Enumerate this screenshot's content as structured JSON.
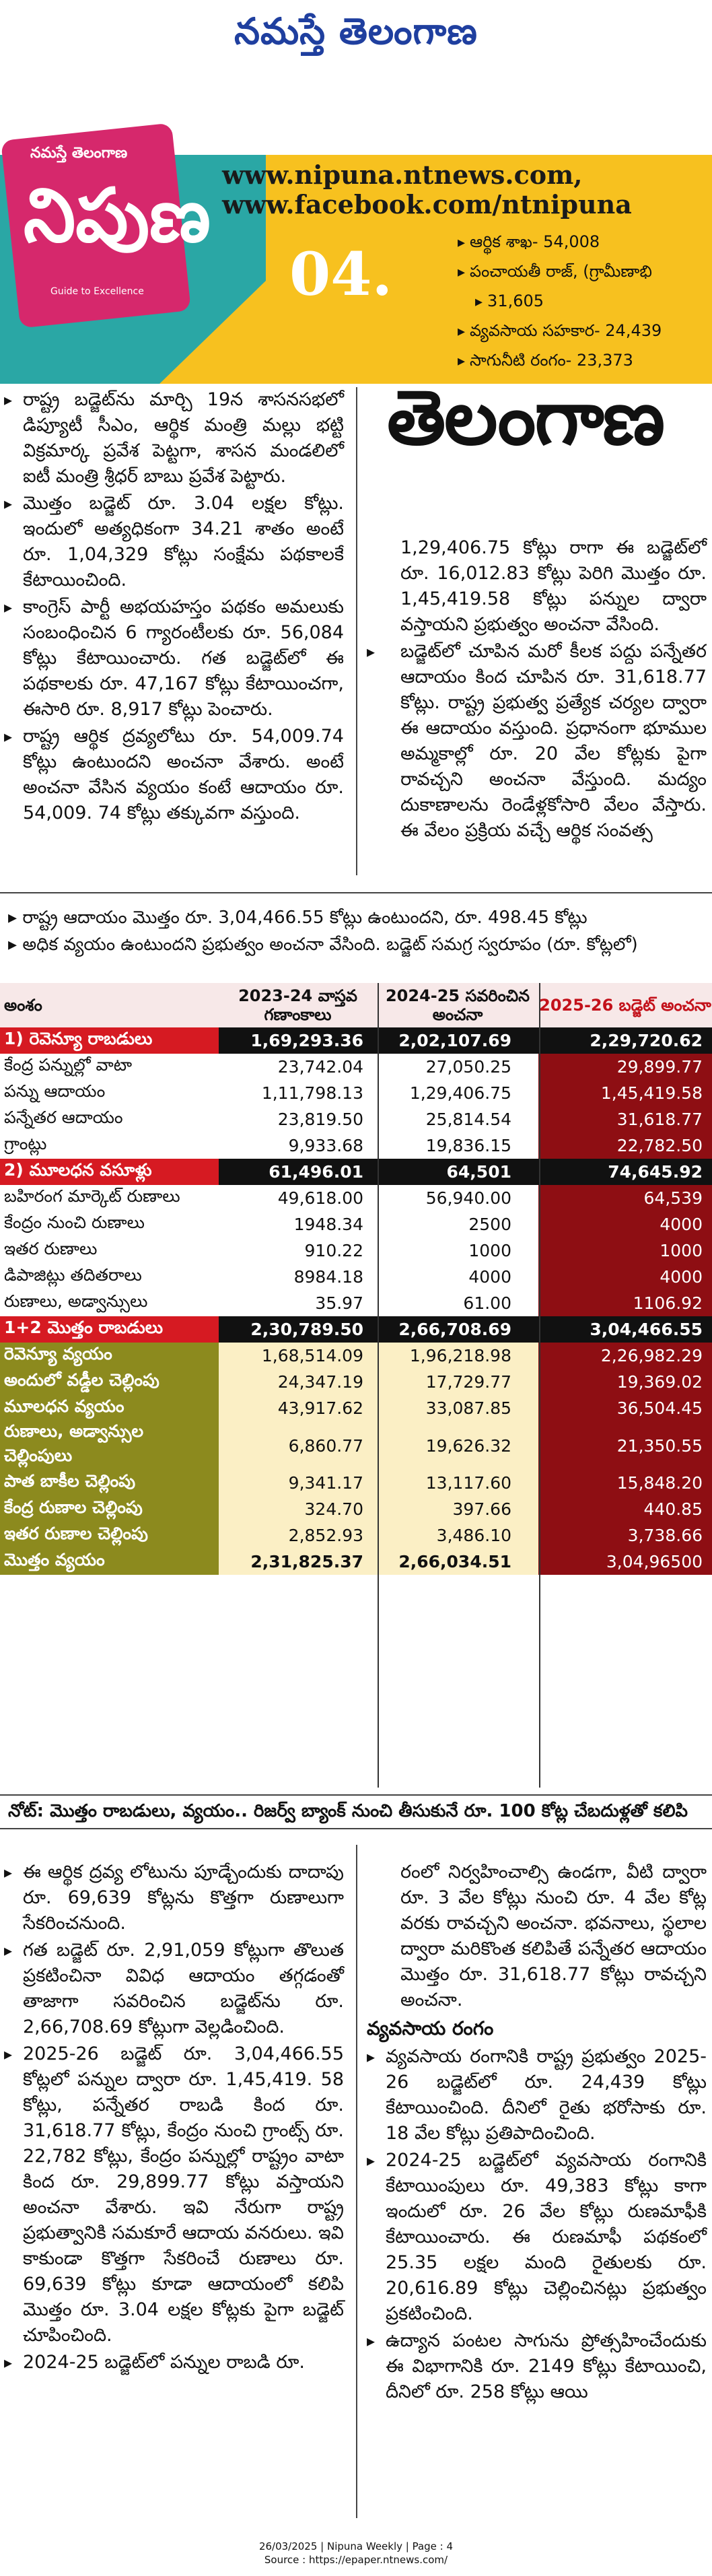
{
  "masthead": {
    "title": "నమస్తే తెలంగాణ"
  },
  "banner": {
    "logo_top": "నమస్తే తెలంగాణ",
    "logo_main": "నిపుణ",
    "logo_tag": "Guide to Excellence",
    "issue": "04.",
    "url1": "www.nipuna.ntnews.com,",
    "url2": "www.facebook.com/ntnipuna",
    "bullets": [
      "ఆర్థిక శాఖ- 54,008",
      "పంచాయతీ రాజ్, (గ్రామీణాభి",
      "31,605",
      "వ్యవసాయ సహకార- 24,439",
      "సాగునీటి రంగం- 23,373"
    ]
  },
  "page_title": "తెలంగాణ",
  "left_col": [
    "రాష్ట్ర బడ్జెట్‌ను మార్చి 19న శాసనసభలో డిప్యూటీ సీఎం, ఆర్థిక మంత్రి మల్లు భట్టి విక్రమార్క ప్రవేశ పెట్టగా, శాసన మండలిలో ఐటీ మంత్రి శ్రీధర్ బాబు ప్రవేశ పెట్టారు.",
    "మొత్తం బడ్జెట్ రూ. 3.04 లక్షల కోట్లు. ఇందులో అత్యధికంగా 34.21 శాతం అంటే రూ. 1,04,329 కోట్లు సంక్షేమ పథకాలకే కేటాయించింది.",
    "కాంగ్రెస్ పార్టీ అభయహస్తం పథకం అమలుకు సంబంధించిన 6 గ్యారంటీలకు రూ. 56,084 కోట్లు కేటాయించారు. గత బడ్జెట్‌లో ఈ పథకాలకు రూ. 47,167 కోట్లు కేటాయించగా, ఈసారి రూ. 8,917 కోట్లు పెంచారు.",
    "రాష్ట్ర ఆర్థిక ద్రవ్యలోటు రూ. 54,009.74 కోట్లు ఉంటుందని అంచనా వేశారు. అంటే అంచనా వేసిన వ్యయం కంటే ఆదాయం రూ. 54,009. 74 కోట్లు తక్కువగా వస్తుంది."
  ],
  "right_col_top": [
    "1,29,406.75 కోట్లు రాగా ఈ బడ్జెట్‌లో రూ. 16,012.83 కోట్లు పెరిగి మొత్తం రూ. 1,45,419.58 కోట్లు పన్నుల ద్వారా వస్తాయని ప్రభుత్వం అంచనా వేసింది.",
    "బడ్జెట్‌లో చూపిన మరో కీలక పద్దు పన్నేతర ఆదాయం కింద చూపిన రూ. 31,618.77 కోట్లు. రాష్ట్ర ప్రభుత్వ ప్రత్యేక చర్యల ద్వారా ఈ ఆదాయం వస్తుంది. ప్రధానంగా భూముల అమ్మకాల్లో రూ. 20 వేల కోట్లకు పైగా రావచ్చని అంచనా వేస్తుంది. మద్యం దుకాణాలను రెండేళ్లకోసారి వేలం వేస్తారు. ఈ వేలం ప్రక్రియ వచ్చే ఆర్థిక సంవత్స"
  ],
  "intro": {
    "line1": "రాష్ట్ర ఆదాయం మొత్తం రూ. 3,04,466.55 కోట్లు ఉంటుందని, రూ. 498.45 కోట్లు",
    "line2": "అధిక వ్యయం ఉంటుందని ప్రభుత్వం అంచనా వేసింది. బడ్జెట్ సమగ్ర స్వరూపం (రూ. కోట్లలో)"
  },
  "table": {
    "headers": [
      "అంశం",
      "2023-24 వాస్తవ గణాంకాలు",
      "2024-25 సవరించిన అంచనా",
      "2025-26 బడ్జెట్ అంచనా"
    ],
    "rows": [
      {
        "k": "sec",
        "cells": [
          "1) రెవెన్యూ రాబడులు",
          "1,69,293.36",
          "2,02,107.69",
          "2,29,720.62"
        ]
      },
      {
        "k": "row",
        "cells": [
          "కేంద్ర పన్నుల్లో వాటా",
          "23,742.04",
          "27,050.25",
          "29,899.77"
        ]
      },
      {
        "k": "row",
        "cells": [
          "పన్ను ఆదాయం",
          "1,11,798.13",
          "1,29,406.75",
          "1,45,419.58"
        ]
      },
      {
        "k": "row",
        "cells": [
          "పన్నేతర ఆదాయం",
          "23,819.50",
          "25,814.54",
          "31,618.77"
        ]
      },
      {
        "k": "row",
        "cells": [
          "గ్రాంట్లు",
          "9,933.68",
          "19,836.15",
          "22,782.50"
        ]
      },
      {
        "k": "sec",
        "cells": [
          "2) మూలధన వసూళ్లు",
          "61,496.01",
          "64,501",
          "74,645.92"
        ]
      },
      {
        "k": "row",
        "cells": [
          "బహిరంగ మార్కెట్ రుణాలు",
          "49,618.00",
          "56,940.00",
          "64,539"
        ]
      },
      {
        "k": "row",
        "cells": [
          "కేంద్రం నుంచి రుణాలు",
          "1948.34",
          "2500",
          "4000"
        ]
      },
      {
        "k": "row",
        "cells": [
          "ఇతర రుణాలు",
          "910.22",
          "1000",
          "1000"
        ]
      },
      {
        "k": "row",
        "cells": [
          "డిపాజిట్లు తదితరాలు",
          "8984.18",
          "4000",
          "4000"
        ]
      },
      {
        "k": "row",
        "cells": [
          "రుణాలు, అడ్వాన్సులు",
          "35.97",
          "61.00",
          "1106.92"
        ]
      },
      {
        "k": "sec",
        "cells": [
          "1+2 మొత్తం రాబడులు",
          "2,30,789.50",
          "2,66,708.69",
          "3,04,466.55"
        ]
      },
      {
        "k": "olive",
        "cells": [
          "రెవెన్యూ వ్యయం",
          "1,68,514.09",
          "1,96,218.98",
          "2,26,982.29"
        ]
      },
      {
        "k": "olive",
        "cells": [
          "అందులో వడ్డీల చెల్లింపు",
          "24,347.19",
          "17,729.77",
          "19,369.02"
        ]
      },
      {
        "k": "olive",
        "cells": [
          "మూలధన వ్యయం",
          "43,917.62",
          "33,087.85",
          "36,504.45"
        ]
      },
      {
        "k": "olive",
        "cells": [
          "రుణాలు, అడ్వాన్సుల చెల్లింపులు",
          "6,860.77",
          "19,626.32",
          "21,350.55"
        ]
      },
      {
        "k": "olive",
        "cells": [
          "పాత బాకీల చెల్లింపు",
          "9,341.17",
          "13,117.60",
          "15,848.20"
        ]
      },
      {
        "k": "olive",
        "cells": [
          "కేంద్ర రుణాల చెల్లింపు",
          "324.70",
          "397.66",
          "440.85"
        ]
      },
      {
        "k": "olive",
        "cells": [
          "ఇతర రుణాల చెల్లింపు",
          "2,852.93",
          "3,486.10",
          "3,738.66"
        ]
      },
      {
        "k": "olive",
        "cells": [
          "మొత్తం వ్యయం",
          "2,31,825.37",
          "2,66,034.51",
          "3,04,96500"
        ]
      }
    ]
  },
  "note": "నోట్: మొత్తం రాబడులు, వ్యయం.. రిజర్వ్ బ్యాంక్ నుంచి తీసుకునే రూ. 100 కోట్ల చేబదుళ్లతో కలిపి",
  "bottom_left": [
    "ఈ ఆర్థిక ద్రవ్య లోటును పూడ్చేందుకు దాదాపు రూ. 69,639 కోట్లను కొత్తగా రుణాలుగా సేకరించనుంది.",
    "గత బడ్జెట్ రూ. 2,91,059 కోట్లుగా తొలుత ప్రకటించినా వివిధ ఆదాయం తగ్గడంతో తాజాగా సవరించిన బడ్జెట్‌ను రూ. 2,66,708.69 కోట్లుగా వెల్లడించింది.",
    "2025-26 బడ్జెట్ రూ. 3,04,466.55 కోట్లలో పన్నుల ద్వారా రూ. 1,45,419. 58 కోట్లు, పన్నేతర రాబడి కింద రూ. 31,618.77 కోట్లు, కేంద్రం నుంచి గ్రాంట్స్ రూ. 22,782 కోట్లు, కేంద్రం పన్నుల్లో రాష్ట్రం వాటా కింద రూ. 29,899.77 కోట్లు వస్తాయని అంచనా వేశారు. ఇవి నేరుగా రాష్ట్ర ప్రభుత్వానికి సమకూరే ఆదాయ వనరులు. ఇవి కాకుండా కొత్తగా సేకరించే రుణాలు రూ. 69,639 కోట్లు కూడా ఆదాయంలో కలిపి మొత్తం రూ. 3.04 లక్షల కోట్లకు పైగా బడ్జెట్ చూపించింది.",
    "2024-25 బడ్జెట్‌లో పన్నుల రాబడి రూ."
  ],
  "bottom_right_intro": "రంలో నిర్వహించాల్సి ఉండగా, వీటి ద్వారా రూ. 3 వేల కోట్లు నుంచి రూ. 4 వేల కోట్ల వరకు రావచ్చని అంచనా. భవనాలు, స్థలాల ద్వారా మరికొంత కలిపితే పన్నేతర ఆదాయం మొత్తం రూ. 31,618.77 కోట్లు రావచ్చని అంచనా.",
  "agri_heading": "వ్యవసాయ రంగం",
  "bottom_right": [
    "వ్యవసాయ రంగానికి రాష్ట్ర ప్రభుత్వం 2025-26 బడ్జెట్‌లో రూ. 24,439 కోట్లు కేటాయించింది. దీనిలో రైతు భరోసాకు రూ. 18 వేల కోట్లు ప్రతిపాదించింది.",
    "2024-25 బడ్జెట్‌లో వ్యవసాయ రంగానికి కేటాయింపులు రూ. 49,383 కోట్లు కాగా ఇందులో రూ. 26 వేల కోట్లు రుణమాఫీకి కేటాయించారు. ఈ రుణమాఫీ పథకంలో 25.35 లక్షల మంది రైతులకు రూ. 20,616.89 కోట్లు చెల్లించినట్లు ప్రభుత్వం ప్రకటించింది.",
    "ఉద్యాన పంటల సాగును ప్రోత్సహించేందుకు ఈ విభాగానికి రూ. 2149 కోట్లు కేటాయించి, దీనిలో రూ. 258 కోట్లు ఆయి"
  ],
  "footer": {
    "line1": "26/03/2025 | Nipuna Weekly | Page : 4",
    "line2": "Source : https://epaper.ntnews.com/"
  }
}
